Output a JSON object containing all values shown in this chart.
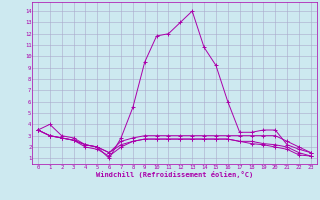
{
  "xlabel": "Windchill (Refroidissement éolien,°C)",
  "ylabel": "",
  "background_color": "#cde9f0",
  "grid_color": "#aaaacc",
  "line_color": "#aa00aa",
  "xlim": [
    -0.5,
    23.5
  ],
  "ylim": [
    0.5,
    14.8
  ],
  "xticks": [
    0,
    1,
    2,
    3,
    4,
    5,
    6,
    7,
    8,
    9,
    10,
    11,
    12,
    13,
    14,
    15,
    16,
    17,
    18,
    19,
    20,
    21,
    22,
    23
  ],
  "yticks": [
    1,
    2,
    3,
    4,
    5,
    6,
    7,
    8,
    9,
    10,
    11,
    12,
    13,
    14
  ],
  "series": [
    [
      3.5,
      4.0,
      3.0,
      2.8,
      2.2,
      2.0,
      1.0,
      2.8,
      5.5,
      9.5,
      11.8,
      12.0,
      13.0,
      14.0,
      10.8,
      9.2,
      6.0,
      3.3,
      3.3,
      3.5,
      3.5,
      2.2,
      1.8,
      1.5
    ],
    [
      3.5,
      3.0,
      2.8,
      2.6,
      2.2,
      2.0,
      1.5,
      2.5,
      2.8,
      3.0,
      3.0,
      3.0,
      3.0,
      3.0,
      3.0,
      3.0,
      3.0,
      3.0,
      3.0,
      3.0,
      3.0,
      2.5,
      2.0,
      1.5
    ],
    [
      3.5,
      3.0,
      2.8,
      2.6,
      2.2,
      2.0,
      1.5,
      2.2,
      2.5,
      2.7,
      2.7,
      2.7,
      2.7,
      2.7,
      2.7,
      2.7,
      2.7,
      2.5,
      2.5,
      2.3,
      2.2,
      2.0,
      1.5,
      1.2
    ],
    [
      3.5,
      3.0,
      2.8,
      2.6,
      2.0,
      1.8,
      1.2,
      2.0,
      2.5,
      2.7,
      2.7,
      2.7,
      2.7,
      2.7,
      2.7,
      2.7,
      2.7,
      2.5,
      2.3,
      2.2,
      2.0,
      1.8,
      1.3,
      1.2
    ]
  ]
}
